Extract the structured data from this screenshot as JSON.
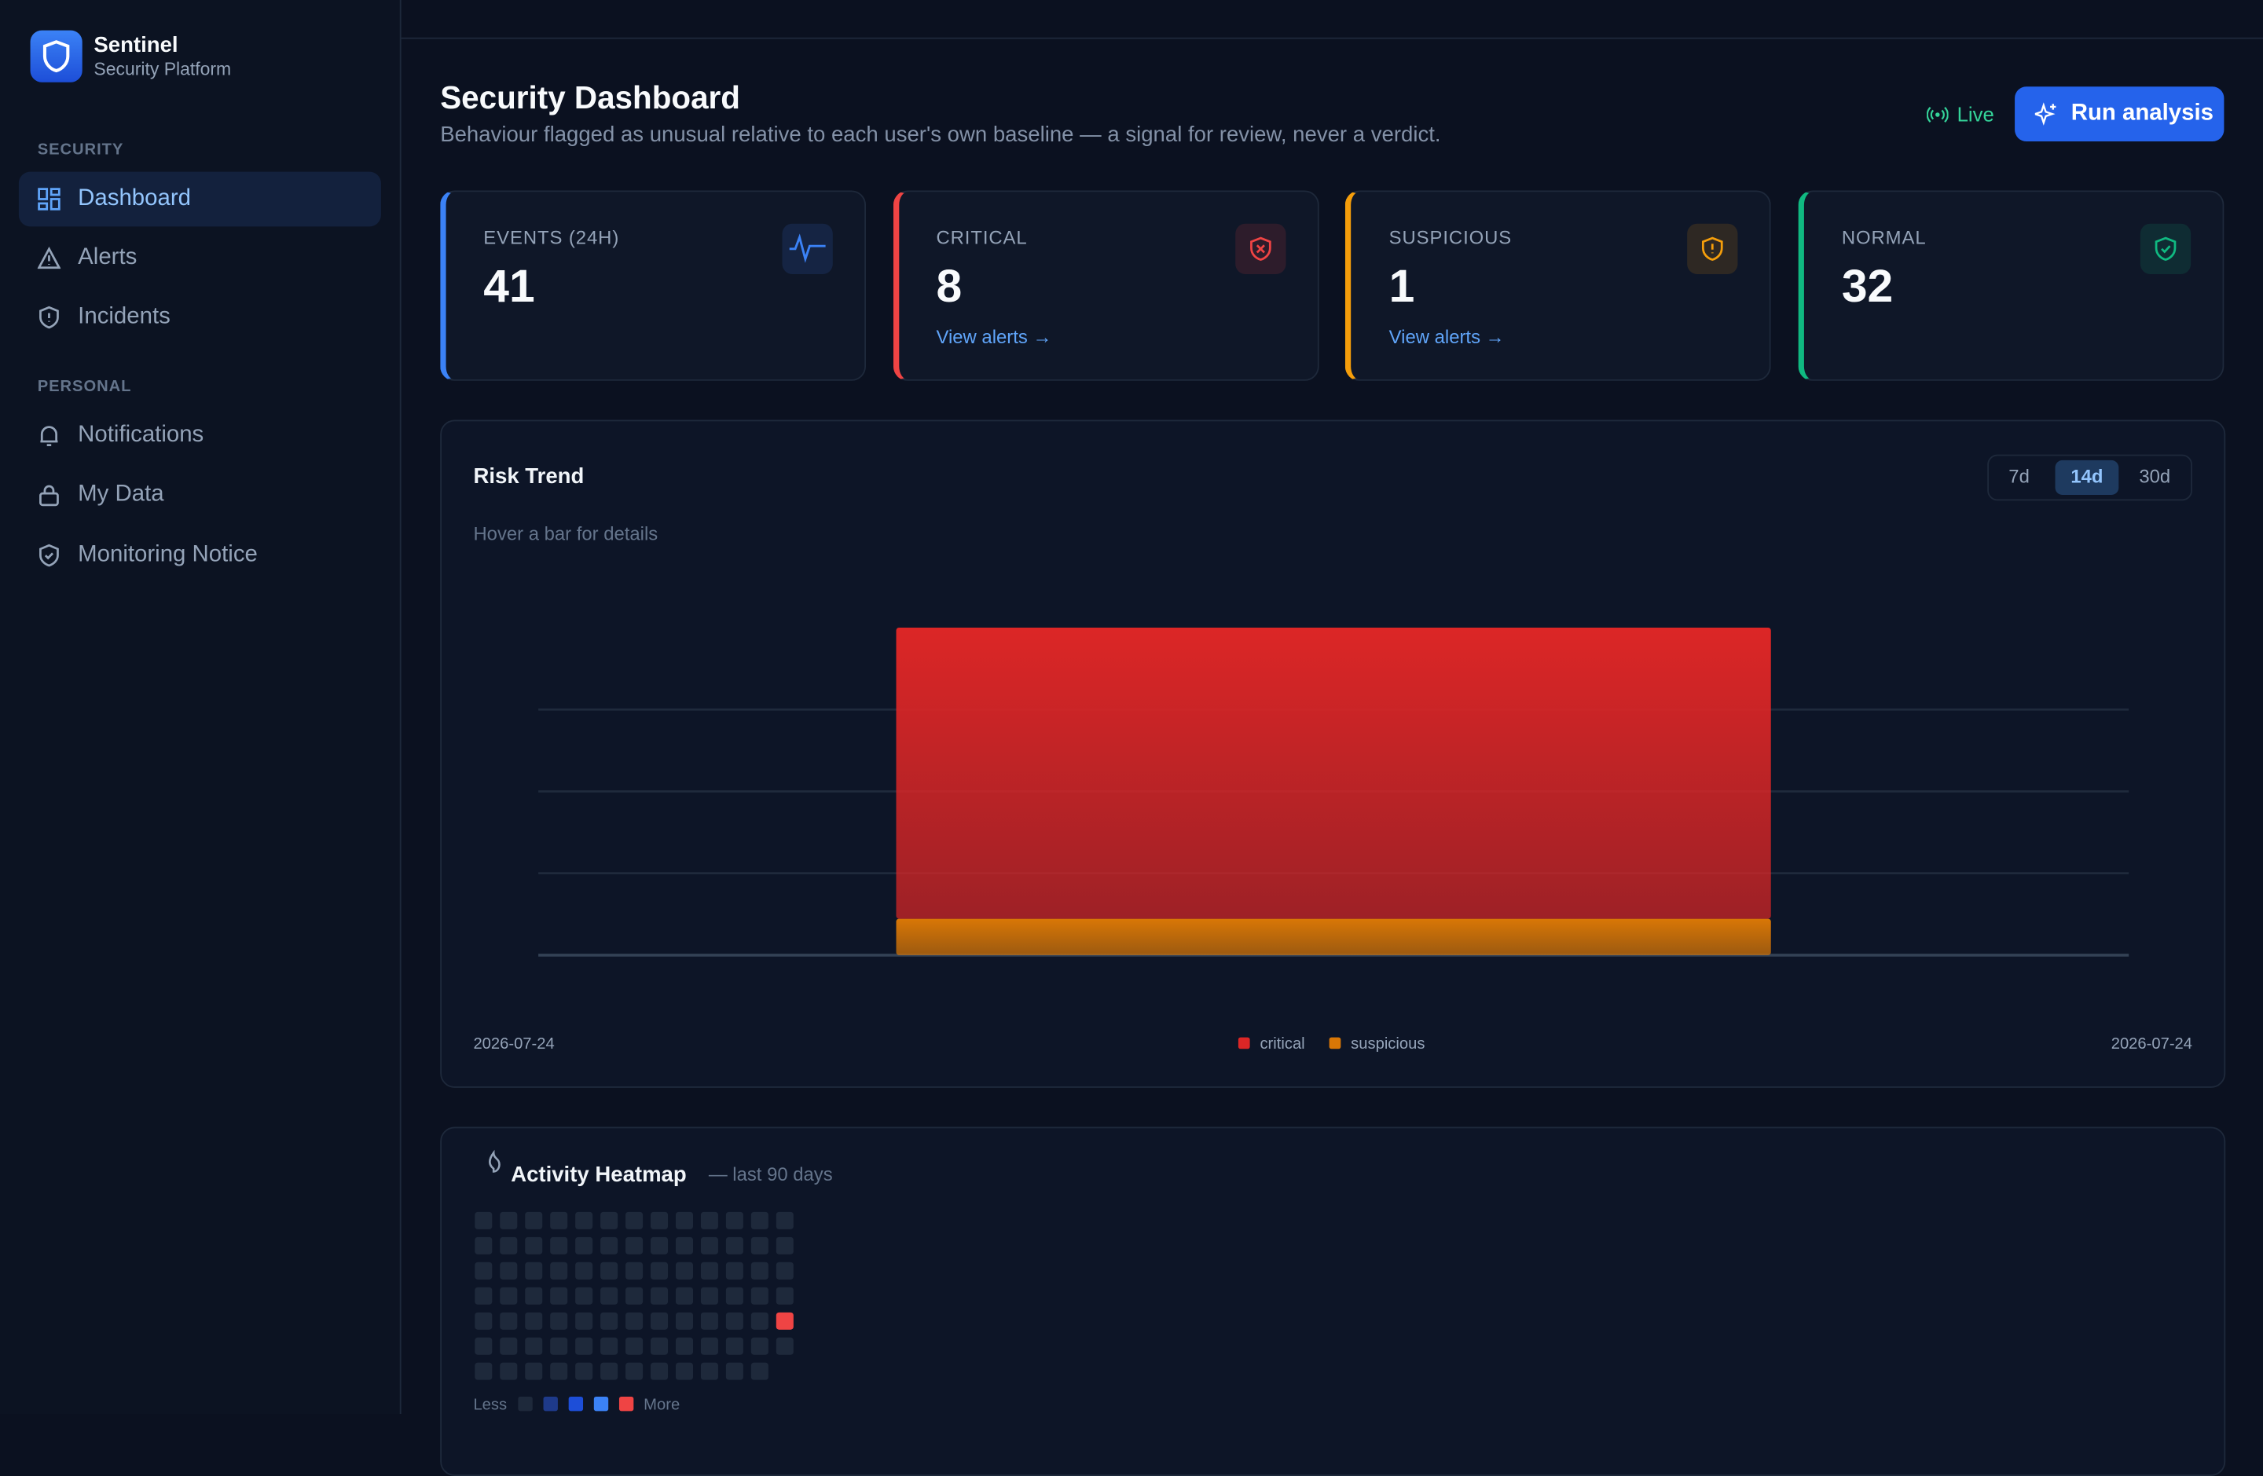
{
  "sidebar": {
    "brand": "Sentinel",
    "tagline": "Security Platform",
    "sections": [
      {
        "heading": "SECURITY",
        "items": [
          "Dashboard",
          "Alerts",
          "Incidents"
        ]
      },
      {
        "heading": "PERSONAL",
        "items": [
          "Notifications",
          "My Data",
          "Monitoring Notice"
        ]
      }
    ]
  },
  "header": {
    "title": "Security Dashboard",
    "subtitle": "Behaviour flagged as unusual relative to each user's own baseline — a signal for review, never a verdict.",
    "status": "Live",
    "button": "Run analysis"
  },
  "cards": [
    {
      "label": "EVENTS (24H)",
      "value": 41,
      "color": "#3b82f6"
    },
    {
      "label": "CRITICAL",
      "value": 8,
      "link": "View alerts →",
      "color": "#ef4444"
    },
    {
      "label": "SUSPICIOUS",
      "value": 1,
      "link": "View alerts →",
      "color": "#f59e0b"
    },
    {
      "label": "NORMAL",
      "value": 32,
      "color": "#10b981"
    }
  ],
  "chart_data": [
    {
      "type": "bar",
      "title": "Risk Trend",
      "subtitle": "Hover a bar for details",
      "ranges": [
        "7d",
        "14d",
        "30d"
      ],
      "active_range": "14d",
      "categories": [
        "2026-07-24"
      ],
      "stacked": true,
      "series": [
        {
          "name": "suspicious",
          "color": "#d97706",
          "values": [
            1
          ]
        },
        {
          "name": "critical",
          "color": "#dc2626",
          "values": [
            8
          ]
        }
      ],
      "ylim": [
        0,
        9
      ],
      "yticks": [
        0,
        2.25,
        4.5,
        6.75
      ],
      "grid": true
    },
    {
      "type": "heatmap",
      "title": "Activity Heatmap",
      "subtitle": "— last 90 days",
      "rows": 7,
      "values": [
        0,
        0,
        0,
        0,
        0,
        0,
        0,
        0,
        0,
        0,
        0,
        0,
        0,
        0,
        0,
        0,
        0,
        0,
        0,
        0,
        0,
        0,
        0,
        0,
        0,
        0,
        0,
        0,
        0,
        0,
        0,
        0,
        0,
        0,
        0,
        0,
        0,
        0,
        0,
        0,
        0,
        0,
        0,
        0,
        0,
        0,
        0,
        0,
        0,
        0,
        0,
        0,
        0,
        0,
        0,
        0,
        0,
        0,
        0,
        0,
        0,
        0,
        0,
        0,
        0,
        0,
        0,
        0,
        0,
        0,
        0,
        0,
        0,
        0,
        0,
        0,
        0,
        0,
        0,
        0,
        0,
        0,
        0,
        0,
        0,
        0,
        0,
        0,
        41,
        0
      ],
      "colors": [
        "#1e293b",
        "#1e3a8a",
        "#1d4ed8",
        "#3b82f6",
        "#ef4444"
      ],
      "legend_low": "Less",
      "legend_high": "More"
    }
  ]
}
